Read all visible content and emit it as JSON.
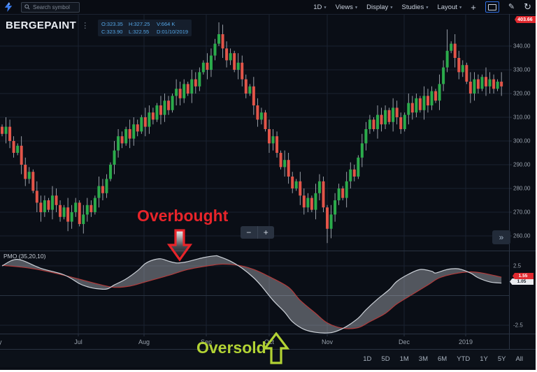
{
  "toolbar": {
    "search_placeholder": "Search symbol",
    "interval_label": "1D",
    "menus": [
      "Views",
      "Display",
      "Studies",
      "Layout"
    ],
    "plus_label": "+",
    "pencil_label": "✎",
    "refresh_label": "↻",
    "accent_color": "#2f6fe4"
  },
  "symbol": {
    "name": "BERGEPAINT",
    "menu_dots": "⋮"
  },
  "ohlc_tooltip": {
    "o": "O:323.35",
    "h": "H:327.25",
    "v": "V:664 K",
    "c": "C:323.90",
    "l": "L:322.55",
    "d": "D:01/10/2019"
  },
  "price_axis": {
    "last_price_tag": "403.66"
  },
  "oscillator_tags": {
    "red": "1.55",
    "white": "1.05"
  },
  "indicator_label": "PMO (35,20,10)",
  "zoom_controls": {
    "minus": "−",
    "plus": "+"
  },
  "collapse_label": "»",
  "annotations": {
    "overbought": "Overbought",
    "oversold": "Oversold",
    "overbought_color": "#e8242a",
    "oversold_color": "#b2d234"
  },
  "timeframes": [
    "1D",
    "5D",
    "1M",
    "3M",
    "6M",
    "YTD",
    "1Y",
    "5Y",
    "All"
  ],
  "chart_data": {
    "type": "candlestick_with_oscillator",
    "symbol": "BERGEPAINT",
    "interval": "1D",
    "colors": {
      "up": "#2bab4b",
      "down": "#e25549",
      "wick": "#b9c0c9",
      "pmo_line": "#ccd1d8",
      "signal_line": "#b23b3b",
      "between_fill": "rgba(201,206,214,0.38)",
      "grid": "#1a2230",
      "zero_line": "#2a3442",
      "axis_text": "#98a1ac",
      "axis_line": "#2a3342"
    },
    "price_pane": {
      "ylim": [
        258,
        353
      ],
      "gridlines": [
        340,
        330,
        320,
        310,
        300,
        290,
        280,
        270,
        260
      ],
      "closes": [
        303,
        306,
        300,
        295,
        298,
        290,
        284,
        287,
        279,
        274,
        270,
        275,
        271,
        277,
        273,
        268,
        272,
        266,
        270,
        274,
        265,
        269,
        273,
        270,
        276,
        281,
        278,
        284,
        290,
        296,
        302,
        299,
        305,
        301,
        307,
        304,
        310,
        306,
        312,
        309,
        315,
        311,
        317,
        313,
        319,
        322,
        318,
        324,
        320,
        326,
        323,
        329,
        333,
        330,
        336,
        341,
        345,
        339,
        334,
        337,
        330,
        333,
        326,
        320,
        323,
        315,
        309,
        312,
        305,
        299,
        302,
        295,
        289,
        292,
        285,
        280,
        283,
        277,
        272,
        276,
        271,
        278,
        283,
        272,
        263,
        269,
        275,
        280,
        276,
        283,
        288,
        285,
        293,
        299,
        305,
        309,
        305,
        311,
        307,
        313,
        308,
        314,
        310,
        305,
        311,
        316,
        312,
        318,
        313,
        319,
        315,
        321,
        317,
        324,
        331,
        338,
        341,
        335,
        329,
        332,
        325,
        320,
        326,
        322,
        327,
        323,
        326,
        322,
        325,
        323
      ],
      "wick_overrides": {
        "10": {
          "low": 266
        },
        "56": {
          "high": 350
        },
        "84": {
          "low": 257
        },
        "115": {
          "high": 347
        }
      }
    },
    "oscillator": {
      "name": "PMO (35,20,10)",
      "ylim": [
        -3.2,
        3.6
      ],
      "gridlines": [
        2.5,
        -2.5
      ],
      "pmo_anchors": [
        [
          0,
          2.5
        ],
        [
          4,
          3.05
        ],
        [
          10,
          2.3
        ],
        [
          16,
          1.75
        ],
        [
          20,
          1.0
        ],
        [
          22,
          0.75
        ],
        [
          24,
          0.6
        ],
        [
          27,
          0.55
        ],
        [
          29,
          0.9
        ],
        [
          32,
          1.4
        ],
        [
          35,
          2.1
        ],
        [
          37,
          2.7
        ],
        [
          39,
          3.0
        ],
        [
          41,
          3.1
        ],
        [
          43,
          2.9
        ],
        [
          45,
          2.75
        ],
        [
          47,
          2.8
        ],
        [
          49,
          2.95
        ],
        [
          52,
          3.2
        ],
        [
          55,
          3.35
        ],
        [
          56,
          3.3
        ],
        [
          59,
          2.9
        ],
        [
          62,
          2.3
        ],
        [
          65,
          1.5
        ],
        [
          67,
          0.8
        ],
        [
          70,
          -0.4
        ],
        [
          73,
          -1.4
        ],
        [
          75,
          -2.2
        ],
        [
          78,
          -2.85
        ],
        [
          81,
          -3.1
        ],
        [
          84,
          -3.15
        ],
        [
          86,
          -3.05
        ],
        [
          89,
          -2.6
        ],
        [
          92,
          -1.9
        ],
        [
          94,
          -1.2
        ],
        [
          97,
          -0.3
        ],
        [
          100,
          0.5
        ],
        [
          102,
          1.2
        ],
        [
          105,
          1.8
        ],
        [
          108,
          2.2
        ],
        [
          111,
          2.05
        ],
        [
          112,
          1.9
        ],
        [
          115,
          2.2
        ],
        [
          118,
          2.25
        ],
        [
          121,
          1.9
        ],
        [
          123,
          1.5
        ],
        [
          126,
          1.15
        ],
        [
          129,
          1.05
        ]
      ],
      "signal_anchors": [
        [
          0,
          2.55
        ],
        [
          5,
          2.4
        ],
        [
          10,
          2.15
        ],
        [
          18,
          1.55
        ],
        [
          25,
          0.95
        ],
        [
          29,
          0.7
        ],
        [
          33,
          0.8
        ],
        [
          37,
          1.15
        ],
        [
          43,
          1.7
        ],
        [
          48,
          2.2
        ],
        [
          54,
          2.55
        ],
        [
          57,
          2.65
        ],
        [
          61,
          2.55
        ],
        [
          65,
          2.2
        ],
        [
          69,
          1.6
        ],
        [
          74,
          0.7
        ],
        [
          77,
          -0.4
        ],
        [
          81,
          -1.5
        ],
        [
          84,
          -2.3
        ],
        [
          88,
          -2.75
        ],
        [
          92,
          -2.7
        ],
        [
          95,
          -2.2
        ],
        [
          99,
          -1.5
        ],
        [
          102,
          -0.7
        ],
        [
          106,
          0.1
        ],
        [
          110,
          0.9
        ],
        [
          113,
          1.5
        ],
        [
          117,
          1.85
        ],
        [
          121,
          2.0
        ],
        [
          124,
          1.9
        ],
        [
          127,
          1.7
        ],
        [
          129,
          1.55
        ]
      ]
    },
    "x_axis": {
      "months": [
        {
          "text": "May",
          "x": -6
        },
        {
          "text": "Jul",
          "x": 112
        },
        {
          "text": "Aug",
          "x": 206
        },
        {
          "text": "Sep",
          "x": 295
        },
        {
          "text": "Oct",
          "x": 385
        },
        {
          "text": "Nov",
          "x": 468
        },
        {
          "text": "Dec",
          "x": 578
        },
        {
          "text": "2019",
          "x": 666
        }
      ]
    }
  }
}
